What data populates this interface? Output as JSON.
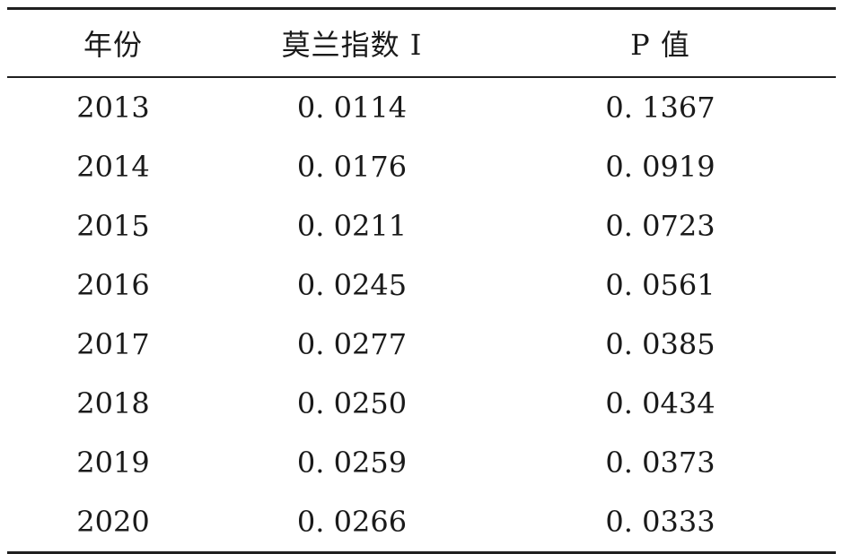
{
  "table": {
    "headers": [
      "年份",
      "莫兰指数 I",
      "P 值"
    ],
    "rows": [
      [
        "2013",
        "0. 0114",
        "0. 1367"
      ],
      [
        "2014",
        "0. 0176",
        "0. 0919"
      ],
      [
        "2015",
        "0. 0211",
        "0. 0723"
      ],
      [
        "2016",
        "0. 0245",
        "0. 0561"
      ],
      [
        "2017",
        "0. 0277",
        "0. 0385"
      ],
      [
        "2018",
        "0. 0250",
        "0. 0434"
      ],
      [
        "2019",
        "0. 0259",
        "0. 0373"
      ],
      [
        "2020",
        "0. 0266",
        "0. 0333"
      ]
    ]
  }
}
